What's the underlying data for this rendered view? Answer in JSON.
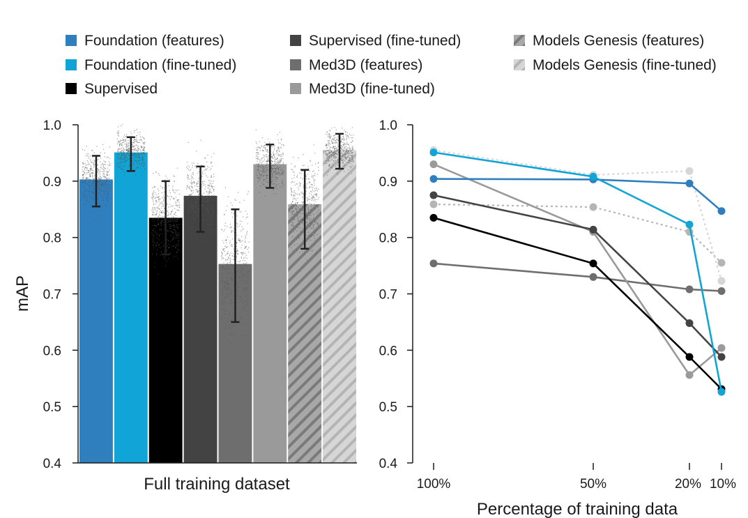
{
  "legend": [
    {
      "key": "f_feat",
      "label": "Foundation (features)",
      "color": "#2f7fbf",
      "pattern": "none"
    },
    {
      "key": "f_ft",
      "label": "Foundation (fine-tuned)",
      "color": "#10a5d6",
      "pattern": "none"
    },
    {
      "key": "sup",
      "label": "Supervised",
      "color": "#000000",
      "pattern": "none"
    },
    {
      "key": "sup_ft",
      "label": "Supervised (fine-tuned)",
      "color": "#434343",
      "pattern": "none"
    },
    {
      "key": "m3d_feat",
      "label": "Med3D (features)",
      "color": "#6e6e6e",
      "pattern": "none"
    },
    {
      "key": "m3d_ft",
      "label": "Med3D (fine-tuned)",
      "color": "#9a9a9a",
      "pattern": "none"
    },
    {
      "key": "mg_feat",
      "label": "Models Genesis (features)",
      "color": "#a8a8a8",
      "pattern": "dark"
    },
    {
      "key": "mg_ft",
      "label": "Models Genesis (fine-tuned)",
      "color": "#d3d3d3",
      "pattern": "light"
    }
  ],
  "chart_data": [
    {
      "type": "bar",
      "xlabel": "Full training dataset",
      "ylabel": "mAP",
      "ylim": [
        0.4,
        1.0
      ],
      "yticks": [
        "0.4",
        "0.5",
        "0.6",
        "0.7",
        "0.8",
        "0.9",
        "1.0"
      ],
      "series": [
        {
          "key": "f_feat",
          "value": 0.903,
          "err_low": 0.855,
          "err_high": 0.945
        },
        {
          "key": "f_ft",
          "value": 0.951,
          "err_low": 0.918,
          "err_high": 0.978
        },
        {
          "key": "sup",
          "value": 0.835,
          "err_low": 0.77,
          "err_high": 0.9
        },
        {
          "key": "sup_ft",
          "value": 0.874,
          "err_low": 0.81,
          "err_high": 0.926
        },
        {
          "key": "m3d_feat",
          "value": 0.753,
          "err_low": 0.65,
          "err_high": 0.85
        },
        {
          "key": "m3d_ft",
          "value": 0.93,
          "err_low": 0.888,
          "err_high": 0.965
        },
        {
          "key": "mg_feat",
          "value": 0.859,
          "err_low": 0.78,
          "err_high": 0.92
        },
        {
          "key": "mg_ft",
          "value": 0.955,
          "err_low": 0.922,
          "err_high": 0.984
        }
      ]
    },
    {
      "type": "line",
      "xlabel": "Percentage of training data",
      "ylabel": "",
      "ylim": [
        0.4,
        1.0
      ],
      "yticks": [
        "0.4",
        "0.5",
        "0.6",
        "0.7",
        "0.8",
        "0.9",
        "1.0"
      ],
      "x": [
        "100%",
        "50%",
        "20%",
        "10%"
      ],
      "series": [
        {
          "key": "mg_feat",
          "style": "dotted",
          "values": [
            0.859,
            0.854,
            0.81,
            0.755
          ]
        },
        {
          "key": "mg_ft",
          "style": "dotted",
          "values": [
            0.955,
            0.911,
            0.918,
            0.723
          ]
        },
        {
          "key": "m3d_feat",
          "style": "solid",
          "values": [
            0.754,
            0.73,
            0.708,
            0.705
          ]
        },
        {
          "key": "m3d_ft",
          "style": "solid",
          "values": [
            0.93,
            0.81,
            0.556,
            0.604
          ]
        },
        {
          "key": "sup_ft",
          "style": "solid",
          "values": [
            0.875,
            0.814,
            0.648,
            0.588
          ]
        },
        {
          "key": "sup",
          "style": "solid",
          "values": [
            0.835,
            0.754,
            0.588,
            0.531
          ]
        },
        {
          "key": "f_feat",
          "style": "solid",
          "values": [
            0.904,
            0.903,
            0.896,
            0.847
          ]
        },
        {
          "key": "f_ft",
          "style": "solid",
          "values": [
            0.951,
            0.908,
            0.823,
            0.526
          ]
        }
      ]
    }
  ]
}
